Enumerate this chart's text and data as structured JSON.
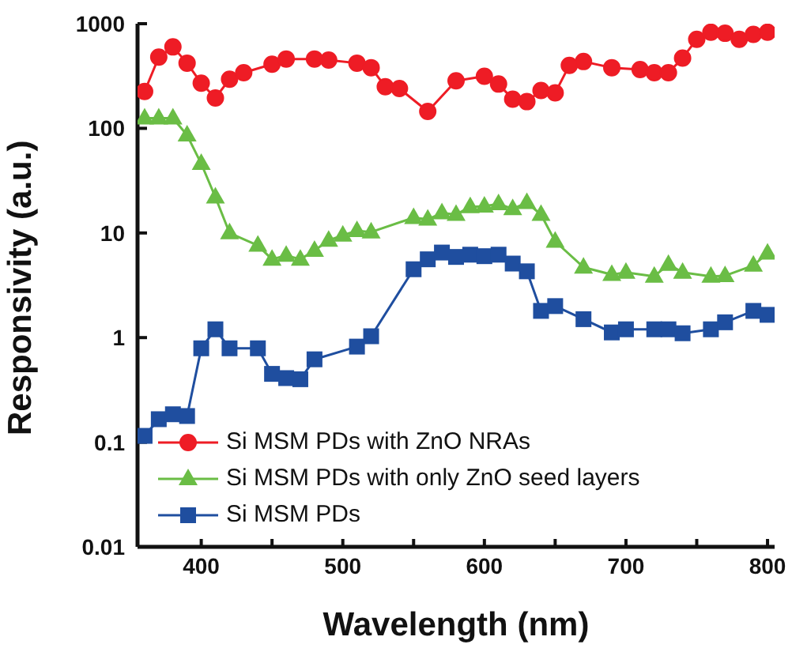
{
  "chart_data": {
    "type": "line",
    "xlabel": "Wavelength (nm)",
    "ylabel": "Responsivity (a.u.)",
    "log": "y",
    "xlim": [
      355,
      805
    ],
    "xticks": [
      400,
      {
        "value": 450,
        "label": null
      },
      500,
      {
        "value": 550,
        "label": null
      },
      600,
      {
        "value": 650,
        "label": null
      },
      700,
      {
        "value": 750,
        "label": null
      },
      800
    ],
    "ylim": [
      0.01,
      1000
    ],
    "yticks": [
      0.01,
      0.1,
      1,
      10,
      100,
      1000
    ],
    "legend": "bottom left",
    "line_style": "solid",
    "series": [
      {
        "name": "Si MSM PDs with ZnO NRAs",
        "color": "#ee1c25",
        "marker": "circle",
        "x": [
          360,
          370,
          380,
          390,
          400,
          410,
          420,
          430,
          450,
          460,
          480,
          490,
          510,
          520,
          530,
          540,
          560,
          580,
          600,
          610,
          620,
          630,
          640,
          650,
          660,
          670,
          690,
          710,
          720,
          730,
          740,
          750,
          760,
          770,
          780,
          790,
          800
        ],
        "values": [
          225,
          480,
          600,
          420,
          270,
          195,
          295,
          340,
          410,
          460,
          460,
          450,
          420,
          380,
          250,
          240,
          145,
          285,
          315,
          265,
          190,
          180,
          230,
          218,
          400,
          435,
          380,
          365,
          340,
          340,
          470,
          710,
          830,
          810,
          710,
          790,
          830
        ]
      },
      {
        "name": "Si MSM PDs with only ZnO seed layers",
        "color": "#6abd45",
        "marker": "triangle",
        "x": [
          360,
          370,
          380,
          390,
          400,
          410,
          420,
          440,
          450,
          460,
          470,
          480,
          490,
          500,
          510,
          520,
          550,
          560,
          570,
          580,
          590,
          600,
          610,
          620,
          630,
          640,
          650,
          670,
          690,
          700,
          720,
          730,
          740,
          760,
          770,
          790,
          800
        ],
        "values": [
          125,
          125,
          125,
          86,
          46,
          22,
          10,
          7.6,
          5.6,
          6.1,
          5.6,
          6.8,
          8.5,
          9.5,
          10.5,
          10.2,
          14,
          13.5,
          15.5,
          15,
          17.8,
          18,
          19,
          17,
          19.5,
          15,
          8.3,
          4.7,
          4.0,
          4.2,
          3.85,
          5.0,
          4.2,
          3.85,
          3.9,
          4.9,
          6.4
        ]
      },
      {
        "name": "Si MSM PDs",
        "color": "#1f4e9f",
        "marker": "square",
        "x": [
          360,
          370,
          380,
          390,
          400,
          410,
          420,
          440,
          450,
          460,
          470,
          480,
          510,
          520,
          550,
          560,
          570,
          580,
          590,
          600,
          610,
          620,
          630,
          640,
          650,
          670,
          690,
          700,
          720,
          730,
          740,
          760,
          770,
          790,
          800
        ],
        "values": [
          0.115,
          0.166,
          0.185,
          0.178,
          0.79,
          1.2,
          0.79,
          0.79,
          0.45,
          0.41,
          0.4,
          0.62,
          0.82,
          1.03,
          4.5,
          5.6,
          6.5,
          5.9,
          6.2,
          6.0,
          6.2,
          5.1,
          4.3,
          1.8,
          2.0,
          1.5,
          1.12,
          1.2,
          1.2,
          1.2,
          1.1,
          1.2,
          1.4,
          1.8,
          1.65
        ]
      }
    ]
  }
}
